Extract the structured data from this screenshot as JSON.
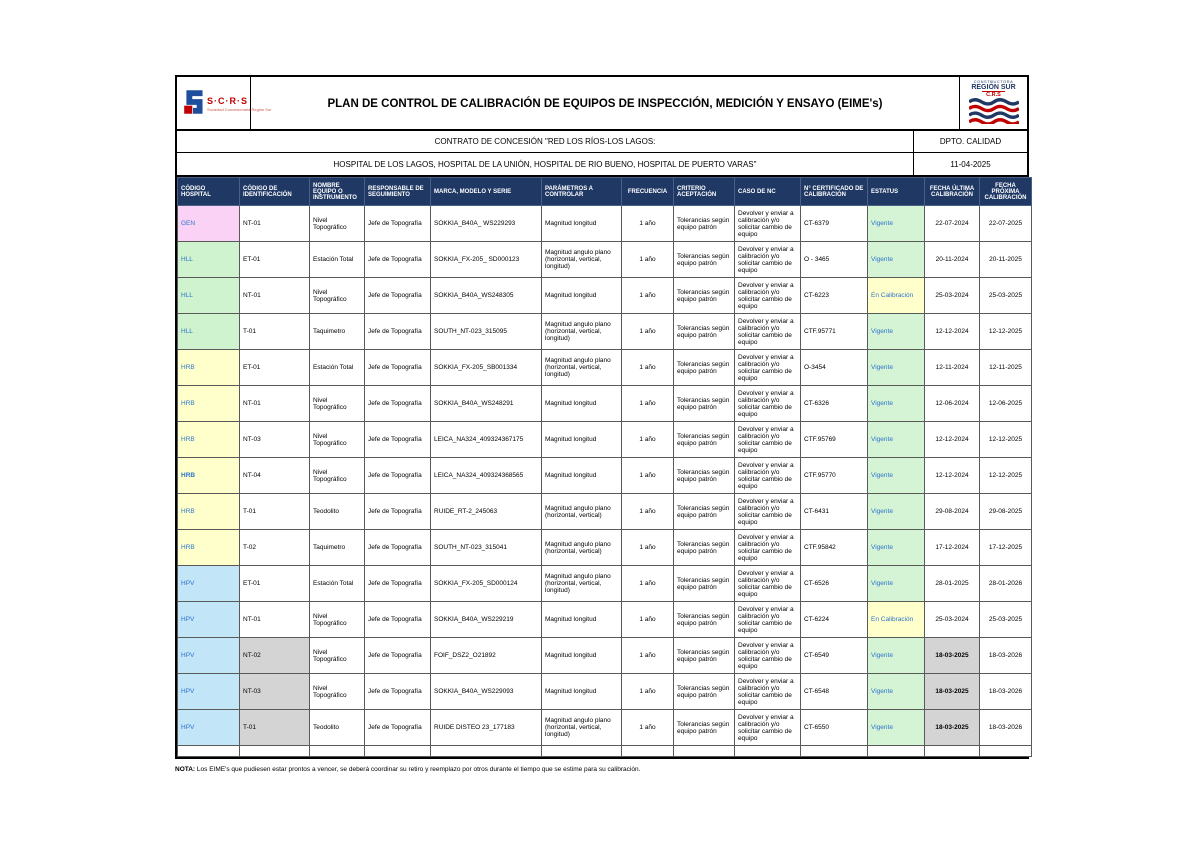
{
  "logo_left": {
    "brand": "S·C·R·S",
    "subtitle": "Sociedad Concesionaria Región Sur"
  },
  "logo_right": {
    "line1": "CONSTRUCTORA",
    "line2": "REGIÓN SUR",
    "line3": "C.R.S"
  },
  "title": "PLAN DE CONTROL DE CALIBRACIÓN DE EQUIPOS DE INSPECCIÓN, MEDICIÓN Y ENSAYO (EIME's)",
  "subheader": {
    "contract_line1": "CONTRATO DE CONCESIÓN \"RED LOS RÍOS-LOS LAGOS:",
    "contract_line2": "HOSPITAL DE LOS LAGOS, HOSPITAL DE LA UNIÓN, HOSPITAL DE RIO BUENO, HOSPITAL DE PUERTO VARAS\"",
    "dept": "DPTO. CALIDAD",
    "date": "11-04-2025"
  },
  "colors": {
    "header_bg": "#1f3864",
    "link_blue": "#2e74c9",
    "gray_cell": "#d4d4d4",
    "gen_pink": "#fad2f5",
    "hll_green": "#cff2cf",
    "hrb_yellow": "#ffffcc",
    "hpv_blue": "#c2e6f8",
    "vigente_green": "#d5f3d5",
    "en_calibracion_yellow": "#ffffcc"
  },
  "table": {
    "columns": [
      {
        "label": "CÓDIGO HOSPITAL",
        "align": "left"
      },
      {
        "label": "CÓDIGO DE IDENTIFICACIÓN",
        "align": "left"
      },
      {
        "label": "NOMBRE EQUIPO O INSTRUMENTO",
        "align": "left"
      },
      {
        "label": "RESPONSABLE DE SEGUIMIENTO",
        "align": "left"
      },
      {
        "label": "MARCA, MODELO Y SERIE",
        "align": "left"
      },
      {
        "label": "PARÁMETROS A CONTROLAR",
        "align": "left"
      },
      {
        "label": "FRECUENCIA",
        "align": "center"
      },
      {
        "label": "CRITERIO ACEPTACIÓN",
        "align": "left"
      },
      {
        "label": "CASO DE NC",
        "align": "left"
      },
      {
        "label": "N° CERTIFICADO DE CALIBRACIÓN",
        "align": "left"
      },
      {
        "label": "ESTATUS",
        "align": "left"
      },
      {
        "label": "FECHA ÚLTIMA CALIBRACIÓN",
        "align": "center"
      },
      {
        "label": "FECHA PRÓXIMA CALIBRACIÓN",
        "align": "center"
      }
    ],
    "rows": [
      {
        "hospital": "GEN",
        "hospital_bg": "#fad2f5",
        "hospital_bold": false,
        "id": "NT-01",
        "id_gray": false,
        "nombre": "Nivel Topográfico",
        "responsable": "Jefe de Topografía",
        "marca": "SOKKIA_B40A_ WS229293",
        "parametros": "Magnitud longitud",
        "frecuencia": "1 año",
        "criterio": "Tolerancias según equipo patrón",
        "caso_nc": "Devolver y enviar a calibración y/o solicitar cambio de equipo",
        "certificado": "CT-6379",
        "estatus": "Vigente",
        "estatus_bg": "#d5f3d5",
        "fecha_ultima": "22-07-2024",
        "fecha_ultima_gray": false,
        "fecha_proxima": "22-07-2025"
      },
      {
        "hospital": "HLL",
        "hospital_bg": "#cff2cf",
        "hospital_bold": false,
        "id": "ET-01",
        "id_gray": false,
        "nombre": "Estación Total",
        "responsable": "Jefe de Topografía",
        "marca": "SOKKIA_FX-205_ SD000123",
        "parametros": "Magnitud angulo plano (horizontal, vertical, longitud)",
        "frecuencia": "1 año",
        "criterio": "Tolerancias según equipo patrón",
        "caso_nc": "Devolver y enviar a calibración y/o solicitar cambio de equipo",
        "certificado": "O - 3465",
        "estatus": "Vigente",
        "estatus_bg": "#d5f3d5",
        "fecha_ultima": "20-11-2024",
        "fecha_ultima_gray": false,
        "fecha_proxima": "20-11-2025"
      },
      {
        "hospital": "HLL",
        "hospital_bg": "#cff2cf",
        "hospital_bold": false,
        "id": "NT-01",
        "id_gray": false,
        "nombre": "Nivel Topográfico",
        "responsable": "Jefe de Topografía",
        "marca": "SOKKIA_B40A_WS248305",
        "parametros": "Magnitud longitud",
        "frecuencia": "1 año",
        "criterio": "Tolerancias según equipo patrón",
        "caso_nc": "Devolver y enviar a calibración y/o solicitar cambio de equipo",
        "certificado": "CT-6223",
        "estatus": "En Calibración",
        "estatus_bg": "#ffffcc",
        "fecha_ultima": "25-03-2024",
        "fecha_ultima_gray": false,
        "fecha_proxima": "25-03-2025"
      },
      {
        "hospital": "HLL",
        "hospital_bg": "#cff2cf",
        "hospital_bold": false,
        "id": "T-01",
        "id_gray": false,
        "nombre": "Taquimetro",
        "responsable": "Jefe de Topografía",
        "marca": "SOUTH_NT-023_315095",
        "parametros": "Magnitud angulo plano (horizontal, vertical, longitud)",
        "frecuencia": "1 año",
        "criterio": "Tolerancias según equipo patrón",
        "caso_nc": "Devolver y enviar a calibración y/o solicitar cambio de equipo",
        "certificado": "CTF.95771",
        "estatus": "Vigente",
        "estatus_bg": "#d5f3d5",
        "fecha_ultima": "12-12-2024",
        "fecha_ultima_gray": false,
        "fecha_proxima": "12-12-2025"
      },
      {
        "hospital": "HRB",
        "hospital_bg": "#ffffcc",
        "hospital_bold": false,
        "id": "ET-01",
        "id_gray": false,
        "nombre": "Estación Total",
        "responsable": "Jefe de Topografía",
        "marca": "SOKKIA_FX-205_SB001334",
        "parametros": "Magnitud angulo plano (horizontal, vertical, longitud)",
        "frecuencia": "1 año",
        "criterio": "Tolerancias según equipo patrón",
        "caso_nc": "Devolver y enviar a calibración y/o solicitar cambio de equipo",
        "certificado": "O-3454",
        "estatus": "Vigente",
        "estatus_bg": "#d5f3d5",
        "fecha_ultima": "12-11-2024",
        "fecha_ultima_gray": false,
        "fecha_proxima": "12-11-2025"
      },
      {
        "hospital": "HRB",
        "hospital_bg": "#ffffcc",
        "hospital_bold": false,
        "id": "NT-01",
        "id_gray": false,
        "nombre": "Nivel Topográfico",
        "responsable": "Jefe de Topografía",
        "marca": "SOKKIA_B40A_WS248291",
        "parametros": "Magnitud longitud",
        "frecuencia": "1 año",
        "criterio": "Tolerancias según equipo patrón",
        "caso_nc": "Devolver y enviar a calibración y/o solicitar cambio de equipo",
        "certificado": "CT-6326",
        "estatus": "Vigente",
        "estatus_bg": "#d5f3d5",
        "fecha_ultima": "12-06-2024",
        "fecha_ultima_gray": false,
        "fecha_proxima": "12-06-2025"
      },
      {
        "hospital": "HRB",
        "hospital_bg": "#ffffcc",
        "hospital_bold": false,
        "id": "NT-03",
        "id_gray": false,
        "nombre": "Nivel Topográfico",
        "responsable": "Jefe de Topografía",
        "marca": "LEICA_NA324_409324367175",
        "parametros": "Magnitud longitud",
        "frecuencia": "1 año",
        "criterio": "Tolerancias según equipo patrón",
        "caso_nc": "Devolver y enviar a calibración y/o solicitar cambio de equipo",
        "certificado": "CTF.95769",
        "estatus": "Vigente",
        "estatus_bg": "#d5f3d5",
        "fecha_ultima": "12-12-2024",
        "fecha_ultima_gray": false,
        "fecha_proxima": "12-12-2025"
      },
      {
        "hospital": "HRB",
        "hospital_bg": "#ffffcc",
        "hospital_bold": true,
        "id": "NT-04",
        "id_gray": false,
        "nombre": "Nivel Topográfico",
        "responsable": "Jefe de Topografía",
        "marca": "LEICA_NA324_409324368565",
        "parametros": "Magnitud longitud",
        "frecuencia": "1 año",
        "criterio": "Tolerancias según equipo patrón",
        "caso_nc": "Devolver y enviar a calibración y/o solicitar cambio de equipo",
        "certificado": "CTF.95770",
        "estatus": "Vigente",
        "estatus_bg": "#d5f3d5",
        "fecha_ultima": "12-12-2024",
        "fecha_ultima_gray": false,
        "fecha_proxima": "12-12-2025"
      },
      {
        "hospital": "HRB",
        "hospital_bg": "#ffffcc",
        "hospital_bold": false,
        "id": "T-01",
        "id_gray": false,
        "nombre": "Teodolito",
        "responsable": "Jefe de Topografía",
        "marca": "RUIDE_RT-2_245063",
        "parametros": "Magnitud angulo plano (horizontal, vertical)",
        "frecuencia": "1 año",
        "criterio": "Tolerancias según equipo patrón",
        "caso_nc": "Devolver y enviar a calibración y/o solicitar cambio de equipo",
        "certificado": "CT-6431",
        "estatus": "Vigente",
        "estatus_bg": "#d5f3d5",
        "fecha_ultima": "29-08-2024",
        "fecha_ultima_gray": false,
        "fecha_proxima": "29-08-2025"
      },
      {
        "hospital": "HRB",
        "hospital_bg": "#ffffcc",
        "hospital_bold": false,
        "id": "T-02",
        "id_gray": false,
        "nombre": "Taquimetro",
        "responsable": "Jefe de Topografía",
        "marca": "SOUTH_NT-023_315041",
        "parametros": "Magnitud angulo plano (horizontal, vertical)",
        "frecuencia": "1 año",
        "criterio": "Tolerancias según equipo patrón",
        "caso_nc": "Devolver y enviar a calibración y/o solicitar cambio de equipo",
        "certificado": "CTF.95842",
        "estatus": "Vigente",
        "estatus_bg": "#d5f3d5",
        "fecha_ultima": "17-12-2024",
        "fecha_ultima_gray": false,
        "fecha_proxima": "17-12-2025"
      },
      {
        "hospital": "HPV",
        "hospital_bg": "#c2e6f8",
        "hospital_bold": false,
        "id": "ET-01",
        "id_gray": false,
        "nombre": "Estación Total",
        "responsable": "Jefe de Topografía",
        "marca": "SOKKIA_FX-205_SD000124",
        "parametros": "Magnitud angulo plano (horizontal, vertical, longitud)",
        "frecuencia": "1 año",
        "criterio": "Tolerancias según equipo patrón",
        "caso_nc": "Devolver y enviar a calibración y/o solicitar cambio de equipo",
        "certificado": "CT-6526",
        "estatus": "Vigente",
        "estatus_bg": "#d5f3d5",
        "fecha_ultima": "28-01-2025",
        "fecha_ultima_gray": false,
        "fecha_proxima": "28-01-2026"
      },
      {
        "hospital": "HPV",
        "hospital_bg": "#c2e6f8",
        "hospital_bold": false,
        "id": "NT-01",
        "id_gray": false,
        "nombre": "Nivel Topográfico",
        "responsable": "Jefe de Topografía",
        "marca": "SOKKIA_B40A_WS229219",
        "parametros": "Magnitud longitud",
        "frecuencia": "1 año",
        "criterio": "Tolerancias según equipo patrón",
        "caso_nc": "Devolver y enviar a calibración y/o solicitar cambio de equipo",
        "certificado": "CT-6224",
        "estatus": "En Calibración",
        "estatus_bg": "#ffffcc",
        "fecha_ultima": "25-03-2024",
        "fecha_ultima_gray": false,
        "fecha_proxima": "25-03-2025"
      },
      {
        "hospital": "HPV",
        "hospital_bg": "#c2e6f8",
        "hospital_bold": false,
        "id": "NT-02",
        "id_gray": true,
        "nombre": "Nivel Topográfico",
        "responsable": "Jefe de Topografía",
        "marca": "FOIF_DSZ2_O21892",
        "parametros": "Magnitud longitud",
        "frecuencia": "1 año",
        "criterio": "Tolerancias según equipo patrón",
        "caso_nc": "Devolver y enviar a calibración y/o solicitar cambio de equipo",
        "certificado": "CT-6549",
        "estatus": "Vigente",
        "estatus_bg": "#d5f3d5",
        "fecha_ultima": "18-03-2025",
        "fecha_ultima_gray": true,
        "fecha_proxima": "18-03-2026"
      },
      {
        "hospital": "HPV",
        "hospital_bg": "#c2e6f8",
        "hospital_bold": false,
        "id": "NT-03",
        "id_gray": true,
        "nombre": "Nivel Topográfico",
        "responsable": "Jefe de Topografía",
        "marca": "SOKKIA_B40A_WS229093",
        "parametros": "Magnitud longitud",
        "frecuencia": "1 año",
        "criterio": "Tolerancias según equipo patrón",
        "caso_nc": "Devolver y enviar a calibración y/o solicitar cambio de equipo",
        "certificado": "CT-6548",
        "estatus": "Vigente",
        "estatus_bg": "#d5f3d5",
        "fecha_ultima": "18-03-2025",
        "fecha_ultima_gray": true,
        "fecha_proxima": "18-03-2026"
      },
      {
        "hospital": "HPV",
        "hospital_bg": "#c2e6f8",
        "hospital_bold": false,
        "id": "T-01",
        "id_gray": true,
        "nombre": "Teodolito",
        "responsable": "Jefe de Topografía",
        "marca": "RUIDE DISTEO 23_177183",
        "parametros": "Magnitud angulo plano (horizontal, vertical, longitud)",
        "frecuencia": "1 año",
        "criterio": "Tolerancias según equipo patrón",
        "caso_nc": "Devolver y enviar a calibración y/o solicitar cambio de equipo",
        "certificado": "CT-6550",
        "estatus": "Vigente",
        "estatus_bg": "#d5f3d5",
        "fecha_ultima": "18-03-2025",
        "fecha_ultima_gray": true,
        "fecha_proxima": "18-03-2026"
      }
    ]
  },
  "note": {
    "label": "NOTA:",
    "text": "Los EIME's que pudiesen estar prontos a vencer, se deberá coordinar su retiro y reemplazo por otros durante el tiempo que se estime para su calibración."
  }
}
